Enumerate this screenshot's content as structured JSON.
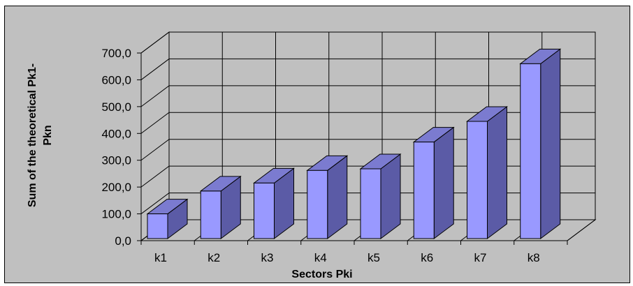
{
  "chart_data": {
    "type": "bar",
    "style": "3d-column",
    "categories": [
      "k1",
      "k2",
      "k3",
      "k4",
      "k5",
      "k6",
      "k7",
      "k8"
    ],
    "series": [
      {
        "values": [
          100,
          185,
          215,
          262,
          268,
          368,
          445,
          660
        ]
      }
    ],
    "y_ticks": [
      "0,0",
      "100,0",
      "200,0",
      "300,0",
      "400,0",
      "500,0",
      "600,0",
      "700,0"
    ],
    "ylim": [
      0,
      700
    ],
    "xlabel": "Sectors Pki",
    "ylabel_lines": [
      "Sum of the theoretical Pk1-",
      "Pkn"
    ],
    "grid": true,
    "legend": "none",
    "colors": {
      "background": "#c0c0c0",
      "bar_front": "#9999ff",
      "bar_side": "#5b5ba6",
      "bar_top": "#7b7bd0",
      "grid": "#000000"
    }
  }
}
